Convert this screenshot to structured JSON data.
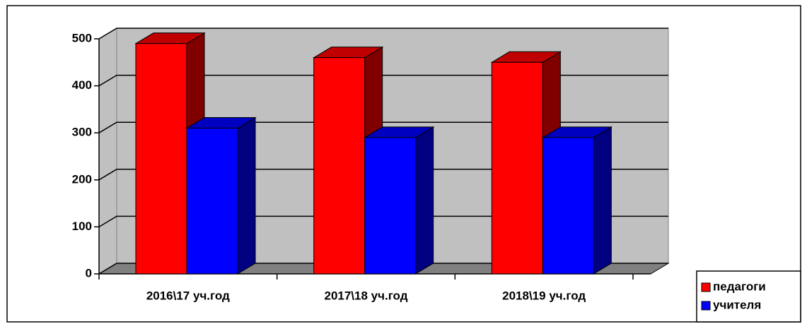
{
  "chart_data": {
    "type": "bar3d",
    "categories": [
      "2016\\17 уч.год",
      "2017\\18 уч.год",
      "2018\\19 уч.год"
    ],
    "series": [
      {
        "name": "педагоги",
        "color": "#ff0000",
        "side_color": "#800000",
        "values": [
          490,
          460,
          450
        ]
      },
      {
        "name": "учителя",
        "color": "#0000ff",
        "side_color": "#000080",
        "values": [
          310,
          290,
          290
        ]
      }
    ],
    "ylim": [
      0,
      500
    ],
    "yticks": [
      0,
      100,
      200,
      300,
      400,
      500
    ],
    "grid": true,
    "legend": "right"
  }
}
